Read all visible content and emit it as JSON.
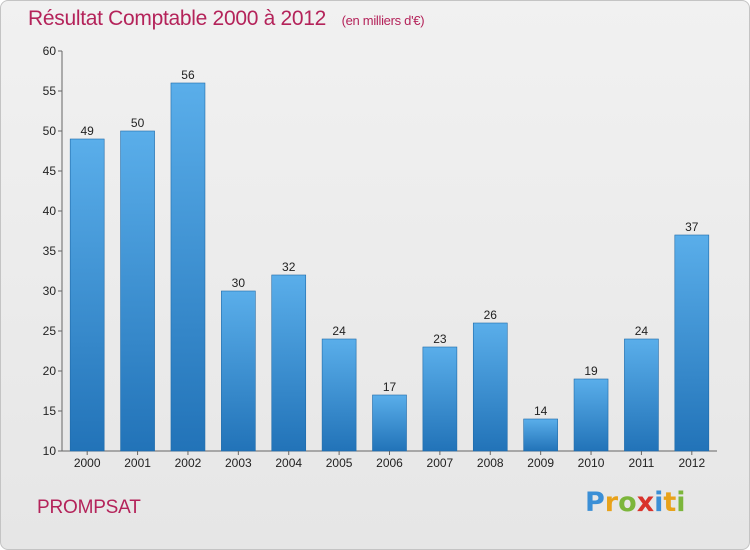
{
  "header": {
    "title": "Résultat Comptable 2000 à 2012",
    "subtitle": "(en milliers d'€)"
  },
  "footer": {
    "town": "PROMPSAT",
    "brand_letters": [
      "P",
      "r",
      "o",
      "x",
      "i",
      "t",
      "i"
    ],
    "brand_colors": [
      "#3b8fd6",
      "#e8a21a",
      "#7cb63b",
      "#d9332c",
      "#3b8fd6",
      "#e8a21a",
      "#7cb63b"
    ]
  },
  "colors": {
    "bar_top": "#5aaeea",
    "bar_bottom": "#2273b8",
    "title": "#b4235a",
    "grid": "#bfbfbf"
  },
  "chart_data": {
    "type": "bar",
    "title": "Résultat Comptable 2000 à 2012",
    "subtitle": "(en milliers d'€)",
    "xlabel": "",
    "ylabel": "",
    "categories": [
      "2000",
      "2001",
      "2002",
      "2003",
      "2004",
      "2005",
      "2006",
      "2007",
      "2008",
      "2009",
      "2010",
      "2011",
      "2012"
    ],
    "values": [
      49,
      50,
      56,
      30,
      32,
      24,
      17,
      23,
      26,
      14,
      19,
      24,
      37
    ],
    "ylim": [
      10,
      60
    ],
    "yticks": [
      10,
      15,
      20,
      25,
      30,
      35,
      40,
      45,
      50,
      55,
      60
    ],
    "grid": false,
    "legend": "none"
  }
}
